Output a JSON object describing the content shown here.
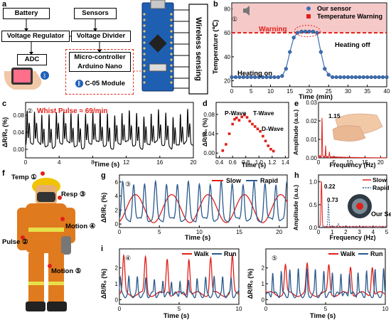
{
  "a": {
    "letter": "a",
    "battery": "Battery",
    "sensors": "Sensors",
    "voltage_regulator": "Voltage Regulator",
    "voltage_divider": "Voltage Divider",
    "adc": "ADC",
    "mcu_line1": "Micro-controller",
    "mcu_line2": "Arduino Nano",
    "bt_module": "C-05 Module",
    "wireless": "Wireless sensing"
  },
  "b": {
    "letter": "b",
    "circled": "①",
    "ylabel": "Temperature (℃)",
    "xlabel": "Time (min)",
    "legend_sensor": "Our sensor",
    "legend_warning": "Temperature Warning",
    "annot_warning": "Warning",
    "annot_heating_on": "Heating on",
    "annot_heating_off": "Heating off",
    "xticks": [
      "0",
      "5",
      "10",
      "15",
      "20",
      "25",
      "30",
      "35",
      "40"
    ],
    "yticks": [
      "20",
      "40",
      "60",
      "80"
    ],
    "xlim": [
      0,
      40
    ],
    "ylim": [
      15,
      85
    ],
    "threshold": 60,
    "x": [
      0,
      1,
      2,
      3,
      4,
      5,
      6,
      7,
      8,
      9,
      10,
      11,
      12,
      13,
      14,
      15,
      16,
      17,
      18,
      19,
      20,
      21,
      22,
      23,
      24,
      25,
      26,
      27,
      28,
      29,
      30,
      31,
      32,
      33,
      34,
      35,
      36,
      37,
      38,
      39,
      40
    ],
    "y": [
      23,
      23,
      23,
      23,
      23,
      23,
      23,
      23,
      23,
      23,
      23,
      23,
      23,
      24,
      30,
      44,
      56,
      60,
      61,
      61,
      61,
      61,
      60,
      44,
      30,
      25,
      23,
      23,
      23,
      23,
      23,
      23,
      23,
      23,
      23,
      23,
      23,
      23,
      23,
      23,
      23
    ]
  },
  "c": {
    "letter": "c",
    "circled": "②",
    "annotation": "Whist Pulse ≈ 69/min",
    "ylabel": "ΔR/R₀ (%)",
    "xlabel": "Time (s)",
    "xticks": [
      "0",
      "4",
      "8",
      "12",
      "16",
      "20"
    ],
    "yticks": [
      "0.00",
      "0.04",
      "0.08"
    ],
    "xlim": [
      0,
      20
    ],
    "ylim": [
      -0.02,
      0.11
    ],
    "pulse_per_min": 69
  },
  "d": {
    "letter": "d",
    "ylabel": "ΔR/R₀ (%)",
    "xlabel": "Time (s)",
    "p_wave": "P-Wave",
    "t_wave": "T-Wave",
    "d_wave": "D-Wave",
    "xticks": [
      "0.4",
      "0.6",
      "0.8",
      "1.0",
      "1.2",
      "1.4"
    ],
    "yticks": [
      "0.00",
      "0.04",
      "0.08"
    ],
    "xlim": [
      0.35,
      1.45
    ],
    "ylim": [
      -0.01,
      0.105
    ],
    "x": [
      0.45,
      0.5,
      0.55,
      0.6,
      0.63,
      0.66,
      0.7,
      0.74,
      0.78,
      0.82,
      0.86,
      0.9,
      0.94,
      0.98,
      1.02,
      1.06,
      1.1,
      1.14,
      1.18,
      1.22
    ],
    "y": [
      0.005,
      0.018,
      0.04,
      0.06,
      0.07,
      0.073,
      0.068,
      0.075,
      0.079,
      0.074,
      0.066,
      0.06,
      0.055,
      0.05,
      0.045,
      0.035,
      0.025,
      0.015,
      0.008,
      0.004
    ]
  },
  "e": {
    "letter": "e",
    "ylabel": "Amplitude (a.u.)",
    "xlabel": "Frequency (Hz)",
    "peak_label": "1.15",
    "xticks": [
      "0",
      "5",
      "10",
      "15",
      "20"
    ],
    "yticks": [
      "0.00",
      "0.01",
      "0.02",
      "0.03"
    ],
    "xlim": [
      0,
      22
    ],
    "ylim": [
      0,
      0.03
    ],
    "peak_freq": 1.15,
    "peak_amp": 0.022
  },
  "f": {
    "letter": "f",
    "temp": "Temp ①",
    "resp": "Resp ③",
    "motion4": "Motion ④",
    "pulse": "Pulse ②",
    "motion5": "Motion ⑤"
  },
  "g": {
    "letter": "g",
    "circled": "③",
    "ylabel": "ΔR/R₀ (%)",
    "xlabel": "Time (s)",
    "legend_slow": "Slow",
    "legend_rapid": "Rapid",
    "xticks": [
      "0",
      "5",
      "10",
      "15",
      "20"
    ],
    "yticks": [
      "0",
      "2",
      "4",
      "6"
    ],
    "xlim": [
      0,
      21
    ],
    "ylim": [
      -0.5,
      7
    ],
    "slow_freq_hz": 0.22,
    "rapid_freq_hz": 0.73
  },
  "h": {
    "letter": "h",
    "ylabel": "Amplitude (a.u.)",
    "xlabel": "Frequency (Hz)",
    "legend_slow": "Slow",
    "legend_rapid": "Rapid",
    "peak_slow": "0.22",
    "peak_rapid": "0.73",
    "sensor_label": "Our Sensor",
    "xticks": [
      "0",
      "1",
      "2",
      "3",
      "4",
      "5"
    ],
    "yticks": [
      "0.0",
      "0.5",
      "1.0"
    ],
    "xlim": [
      0,
      5
    ],
    "ylim": [
      0,
      1.15
    ]
  },
  "i": {
    "letter": "i",
    "ylabel": "ΔR/R₀ (%)",
    "xlabel": "Time (s)",
    "legend_walk": "Walk",
    "legend_run": "Run",
    "left_circled": "④",
    "right_circled": "⑤",
    "xticks": [
      "0",
      "5",
      "10"
    ],
    "xlim": [
      0,
      10
    ],
    "ylim": [
      -0.3,
      3.2
    ]
  },
  "colors": {
    "red": "#e0201b",
    "blue": "#2a5a8c",
    "sensor_blue": "#3b6fb6",
    "warn_bg": "#f6c9c9"
  }
}
